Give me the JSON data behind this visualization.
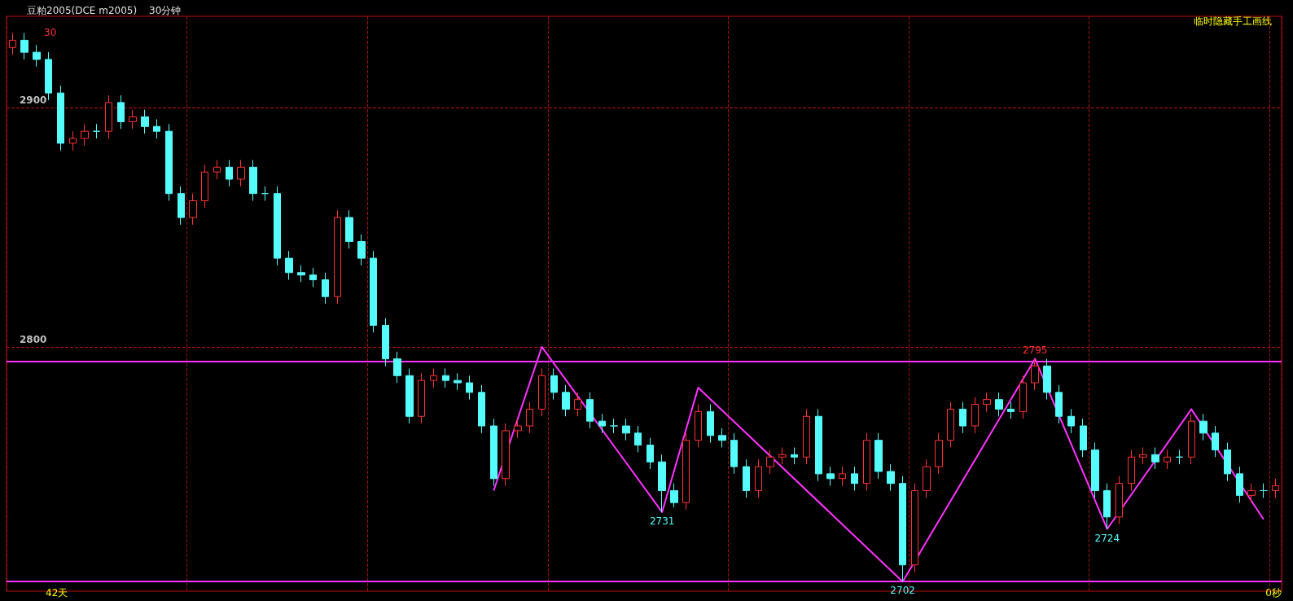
{
  "chart_data": {
    "type": "candlestick",
    "title": "豆粕2005(DCE m2005)",
    "subtitle": "30分钟",
    "annotations": [
      "临时隐藏手工画线",
      "42天",
      "0秒",
      "30"
    ],
    "categories": [
      null,
      null,
      null,
      null,
      null,
      null,
      null,
      null,
      null,
      null,
      null,
      null,
      null,
      null,
      null,
      null,
      null,
      null,
      null,
      null,
      null,
      null,
      null,
      null,
      null,
      null,
      null,
      null,
      null,
      null,
      null,
      null,
      null,
      null,
      null,
      null,
      null,
      null,
      null,
      null,
      null,
      null,
      null,
      null,
      null,
      null,
      null,
      null,
      null,
      null,
      null,
      null,
      null,
      null,
      null,
      null,
      null,
      null,
      null,
      null,
      null,
      null,
      null,
      null,
      null,
      null,
      null,
      null,
      null,
      null,
      null,
      null,
      null,
      null,
      null,
      null,
      null,
      null,
      null,
      null,
      null,
      null,
      null,
      null,
      null,
      null,
      null,
      null,
      null,
      null,
      null,
      null,
      null,
      null,
      null,
      null,
      null,
      null,
      null,
      null,
      null,
      null,
      null,
      null,
      null,
      null
    ],
    "ylim": [
      2698,
      2938
    ],
    "yticks": [
      2800,
      2900
    ],
    "grid": true,
    "tick_labels": "y",
    "marker": "none",
    "ref_lines": [
      {
        "axis": "y",
        "value": 2794,
        "color": "#ff33ff"
      },
      {
        "axis": "y",
        "value": 2702,
        "color": "#ff33ff"
      }
    ],
    "series": [
      {
        "ohlc": [
          [
            2925,
            2931,
            2922,
            2928
          ],
          [
            2928,
            2931,
            2920,
            2923
          ],
          [
            2923,
            2926,
            2917,
            2920
          ],
          [
            2920,
            2923,
            2903,
            2906
          ],
          [
            2906,
            2909,
            2882,
            2885
          ],
          [
            2885,
            2890,
            2882,
            2887
          ],
          [
            2887,
            2893,
            2884,
            2890
          ],
          [
            2890,
            2893,
            2887,
            2890
          ],
          [
            2890,
            2905,
            2887,
            2902
          ],
          [
            2902,
            2905,
            2891,
            2894
          ],
          [
            2894,
            2899,
            2891,
            2896
          ],
          [
            2896,
            2899,
            2889,
            2892
          ],
          [
            2892,
            2895,
            2887,
            2890
          ],
          [
            2890,
            2893,
            2861,
            2864
          ],
          [
            2864,
            2867,
            2851,
            2854
          ],
          [
            2854,
            2864,
            2851,
            2861
          ],
          [
            2861,
            2876,
            2858,
            2873
          ],
          [
            2873,
            2878,
            2870,
            2875
          ],
          [
            2875,
            2878,
            2867,
            2870
          ],
          [
            2870,
            2878,
            2867,
            2875
          ],
          [
            2875,
            2878,
            2861,
            2864
          ],
          [
            2864,
            2867,
            2861,
            2864
          ],
          [
            2864,
            2867,
            2834,
            2837
          ],
          [
            2837,
            2840,
            2828,
            2831
          ],
          [
            2831,
            2834,
            2827,
            2830
          ],
          [
            2830,
            2833,
            2825,
            2828
          ],
          [
            2828,
            2831,
            2818,
            2821
          ],
          [
            2821,
            2857,
            2818,
            2854
          ],
          [
            2854,
            2857,
            2841,
            2844
          ],
          [
            2844,
            2847,
            2834,
            2837
          ],
          [
            2837,
            2840,
            2806,
            2809
          ],
          [
            2809,
            2812,
            2792,
            2795
          ],
          [
            2795,
            2798,
            2785,
            2788
          ],
          [
            2788,
            2791,
            2768,
            2771
          ],
          [
            2771,
            2789,
            2768,
            2786
          ],
          [
            2786,
            2791,
            2783,
            2788
          ],
          [
            2788,
            2791,
            2783,
            2786
          ],
          [
            2786,
            2789,
            2782,
            2785
          ],
          [
            2785,
            2788,
            2778,
            2781
          ],
          [
            2781,
            2784,
            2764,
            2767
          ],
          [
            2767,
            2770,
            2742,
            2745
          ],
          [
            2745,
            2768,
            2742,
            2765
          ],
          [
            2765,
            2770,
            2762,
            2767
          ],
          [
            2767,
            2777,
            2764,
            2774
          ],
          [
            2774,
            2791,
            2771,
            2788
          ],
          [
            2788,
            2791,
            2778,
            2781
          ],
          [
            2781,
            2784,
            2771,
            2774
          ],
          [
            2774,
            2781,
            2771,
            2778
          ],
          [
            2778,
            2781,
            2766,
            2769
          ],
          [
            2769,
            2772,
            2764,
            2767
          ],
          [
            2767,
            2770,
            2764,
            2767
          ],
          [
            2767,
            2770,
            2761,
            2764
          ],
          [
            2764,
            2767,
            2756,
            2759
          ],
          [
            2759,
            2762,
            2749,
            2752
          ],
          [
            2752,
            2755,
            2731,
            2740
          ],
          [
            2740,
            2743,
            2733,
            2735
          ],
          [
            2735,
            2764,
            2732,
            2761
          ],
          [
            2761,
            2776,
            2758,
            2773
          ],
          [
            2773,
            2776,
            2760,
            2763
          ],
          [
            2763,
            2766,
            2758,
            2761
          ],
          [
            2761,
            2764,
            2747,
            2750
          ],
          [
            2750,
            2753,
            2737,
            2740
          ],
          [
            2740,
            2753,
            2737,
            2750
          ],
          [
            2750,
            2757,
            2747,
            2754
          ],
          [
            2754,
            2758,
            2751,
            2755
          ],
          [
            2755,
            2758,
            2751,
            2754
          ],
          [
            2754,
            2774,
            2751,
            2771
          ],
          [
            2771,
            2774,
            2744,
            2747
          ],
          [
            2747,
            2750,
            2742,
            2745
          ],
          [
            2745,
            2750,
            2742,
            2747
          ],
          [
            2747,
            2750,
            2740,
            2743
          ],
          [
            2743,
            2764,
            2740,
            2761
          ],
          [
            2761,
            2764,
            2745,
            2748
          ],
          [
            2748,
            2751,
            2740,
            2743
          ],
          [
            2743,
            2746,
            2702,
            2709
          ],
          [
            2709,
            2743,
            2706,
            2740
          ],
          [
            2740,
            2753,
            2737,
            2750
          ],
          [
            2750,
            2764,
            2747,
            2761
          ],
          [
            2761,
            2777,
            2758,
            2774
          ],
          [
            2774,
            2777,
            2764,
            2767
          ],
          [
            2767,
            2779,
            2764,
            2776
          ],
          [
            2776,
            2781,
            2773,
            2778
          ],
          [
            2778,
            2781,
            2771,
            2774
          ],
          [
            2774,
            2777,
            2770,
            2773
          ],
          [
            2773,
            2788,
            2770,
            2785
          ],
          [
            2785,
            2795,
            2782,
            2792
          ],
          [
            2792,
            2795,
            2778,
            2781
          ],
          [
            2781,
            2784,
            2768,
            2771
          ],
          [
            2771,
            2774,
            2764,
            2767
          ],
          [
            2767,
            2770,
            2754,
            2757
          ],
          [
            2757,
            2760,
            2737,
            2740
          ],
          [
            2740,
            2743,
            2724,
            2729
          ],
          [
            2729,
            2746,
            2726,
            2743
          ],
          [
            2743,
            2757,
            2740,
            2754
          ],
          [
            2754,
            2758,
            2751,
            2755
          ],
          [
            2755,
            2758,
            2749,
            2752
          ],
          [
            2752,
            2757,
            2749,
            2754
          ],
          [
            2754,
            2757,
            2751,
            2754
          ],
          [
            2754,
            2772,
            2751,
            2769
          ],
          [
            2769,
            2772,
            2761,
            2764
          ],
          [
            2764,
            2767,
            2754,
            2757
          ],
          [
            2757,
            2760,
            2744,
            2747
          ],
          [
            2747,
            2750,
            2735,
            2738
          ],
          [
            2738,
            2743,
            2735,
            2740
          ],
          [
            2740,
            2743,
            2737,
            2740
          ],
          [
            2740,
            2745,
            2737,
            2742
          ]
        ],
        "colors": [
          "#ff3232",
          "#54fcfc",
          "#54fcfc",
          "#54fcfc",
          "#54fcfc",
          "#ff3232",
          "#ff3232",
          "#54fcfc",
          "#ff3232",
          "#54fcfc",
          "#ff3232",
          "#54fcfc",
          "#54fcfc",
          "#54fcfc",
          "#54fcfc",
          "#ff3232",
          "#ff3232",
          "#ff3232",
          "#54fcfc",
          "#ff3232",
          "#54fcfc",
          "#54fcfc",
          "#54fcfc",
          "#54fcfc",
          "#54fcfc",
          "#54fcfc",
          "#54fcfc",
          "#ff3232",
          "#54fcfc",
          "#54fcfc",
          "#54fcfc",
          "#54fcfc",
          "#54fcfc",
          "#54fcfc",
          "#ff3232",
          "#ff3232",
          "#54fcfc",
          "#54fcfc",
          "#54fcfc",
          "#54fcfc",
          "#54fcfc",
          "#ff3232",
          "#ff3232",
          "#ff3232",
          "#ff3232",
          "#54fcfc",
          "#54fcfc",
          "#ff3232",
          "#54fcfc",
          "#54fcfc",
          "#54fcfc",
          "#54fcfc",
          "#54fcfc",
          "#54fcfc",
          "#54fcfc",
          "#54fcfc",
          "#ff3232",
          "#ff3232",
          "#54fcfc",
          "#54fcfc",
          "#54fcfc",
          "#54fcfc",
          "#ff3232",
          "#ff3232",
          "#ff3232",
          "#54fcfc",
          "#ff3232",
          "#54fcfc",
          "#54fcfc",
          "#ff3232",
          "#54fcfc",
          "#ff3232",
          "#54fcfc",
          "#54fcfc",
          "#54fcfc",
          "#ff3232",
          "#ff3232",
          "#ff3232",
          "#ff3232",
          "#54fcfc",
          "#ff3232",
          "#ff3232",
          "#54fcfc",
          "#54fcfc",
          "#ff3232",
          "#ff3232",
          "#54fcfc",
          "#54fcfc",
          "#54fcfc",
          "#54fcfc",
          "#54fcfc",
          "#54fcfc",
          "#ff3232",
          "#ff3232",
          "#ff3232",
          "#54fcfc",
          "#ff3232",
          "#54fcfc",
          "#ff3232",
          "#54fcfc",
          "#54fcfc",
          "#54fcfc",
          "#54fcfc",
          "#ff3232",
          "#54fcfc",
          "#ff3232"
        ]
      },
      {
        "type": "line",
        "color": "#ff33ff",
        "values": [
          null,
          null,
          null,
          null,
          null,
          null,
          null,
          null,
          null,
          null,
          null,
          null,
          null,
          null,
          null,
          null,
          null,
          null,
          null,
          null,
          null,
          null,
          null,
          null,
          null,
          null,
          null,
          null,
          null,
          null,
          null,
          null,
          null,
          null,
          null,
          null,
          null,
          null,
          null,
          null,
          2740,
          null,
          null,
          null,
          2800,
          null,
          null,
          null,
          null,
          null,
          null,
          null,
          null,
          null,
          2731,
          null,
          null,
          2783,
          null,
          null,
          null,
          null,
          null,
          null,
          null,
          null,
          null,
          null,
          null,
          null,
          null,
          null,
          null,
          null,
          2702,
          null,
          null,
          null,
          null,
          null,
          null,
          null,
          null,
          null,
          null,
          2795,
          null,
          null,
          null,
          null,
          null,
          2724,
          null,
          null,
          null,
          null,
          null,
          null,
          2774,
          null,
          null,
          null,
          null,
          null,
          2728,
          null
        ],
        "value_labels": [
          null,
          null,
          null,
          null,
          null,
          null,
          null,
          null,
          null,
          null,
          null,
          null,
          null,
          null,
          null,
          null,
          null,
          null,
          null,
          null,
          null,
          null,
          null,
          null,
          null,
          null,
          null,
          null,
          null,
          null,
          null,
          null,
          null,
          null,
          null,
          null,
          null,
          null,
          null,
          null,
          null,
          null,
          null,
          null,
          null,
          null,
          null,
          null,
          null,
          null,
          null,
          null,
          null,
          null,
          "2731",
          null,
          null,
          null,
          null,
          null,
          null,
          null,
          null,
          null,
          null,
          null,
          null,
          null,
          null,
          null,
          null,
          null,
          null,
          null,
          "2702",
          null,
          null,
          null,
          null,
          null,
          null,
          null,
          null,
          null,
          null,
          "2795",
          null,
          null,
          null,
          null,
          null,
          "2724",
          null,
          null,
          null,
          null,
          null,
          null,
          null,
          null,
          null,
          null,
          null,
          null,
          null,
          null
        ]
      }
    ]
  }
}
